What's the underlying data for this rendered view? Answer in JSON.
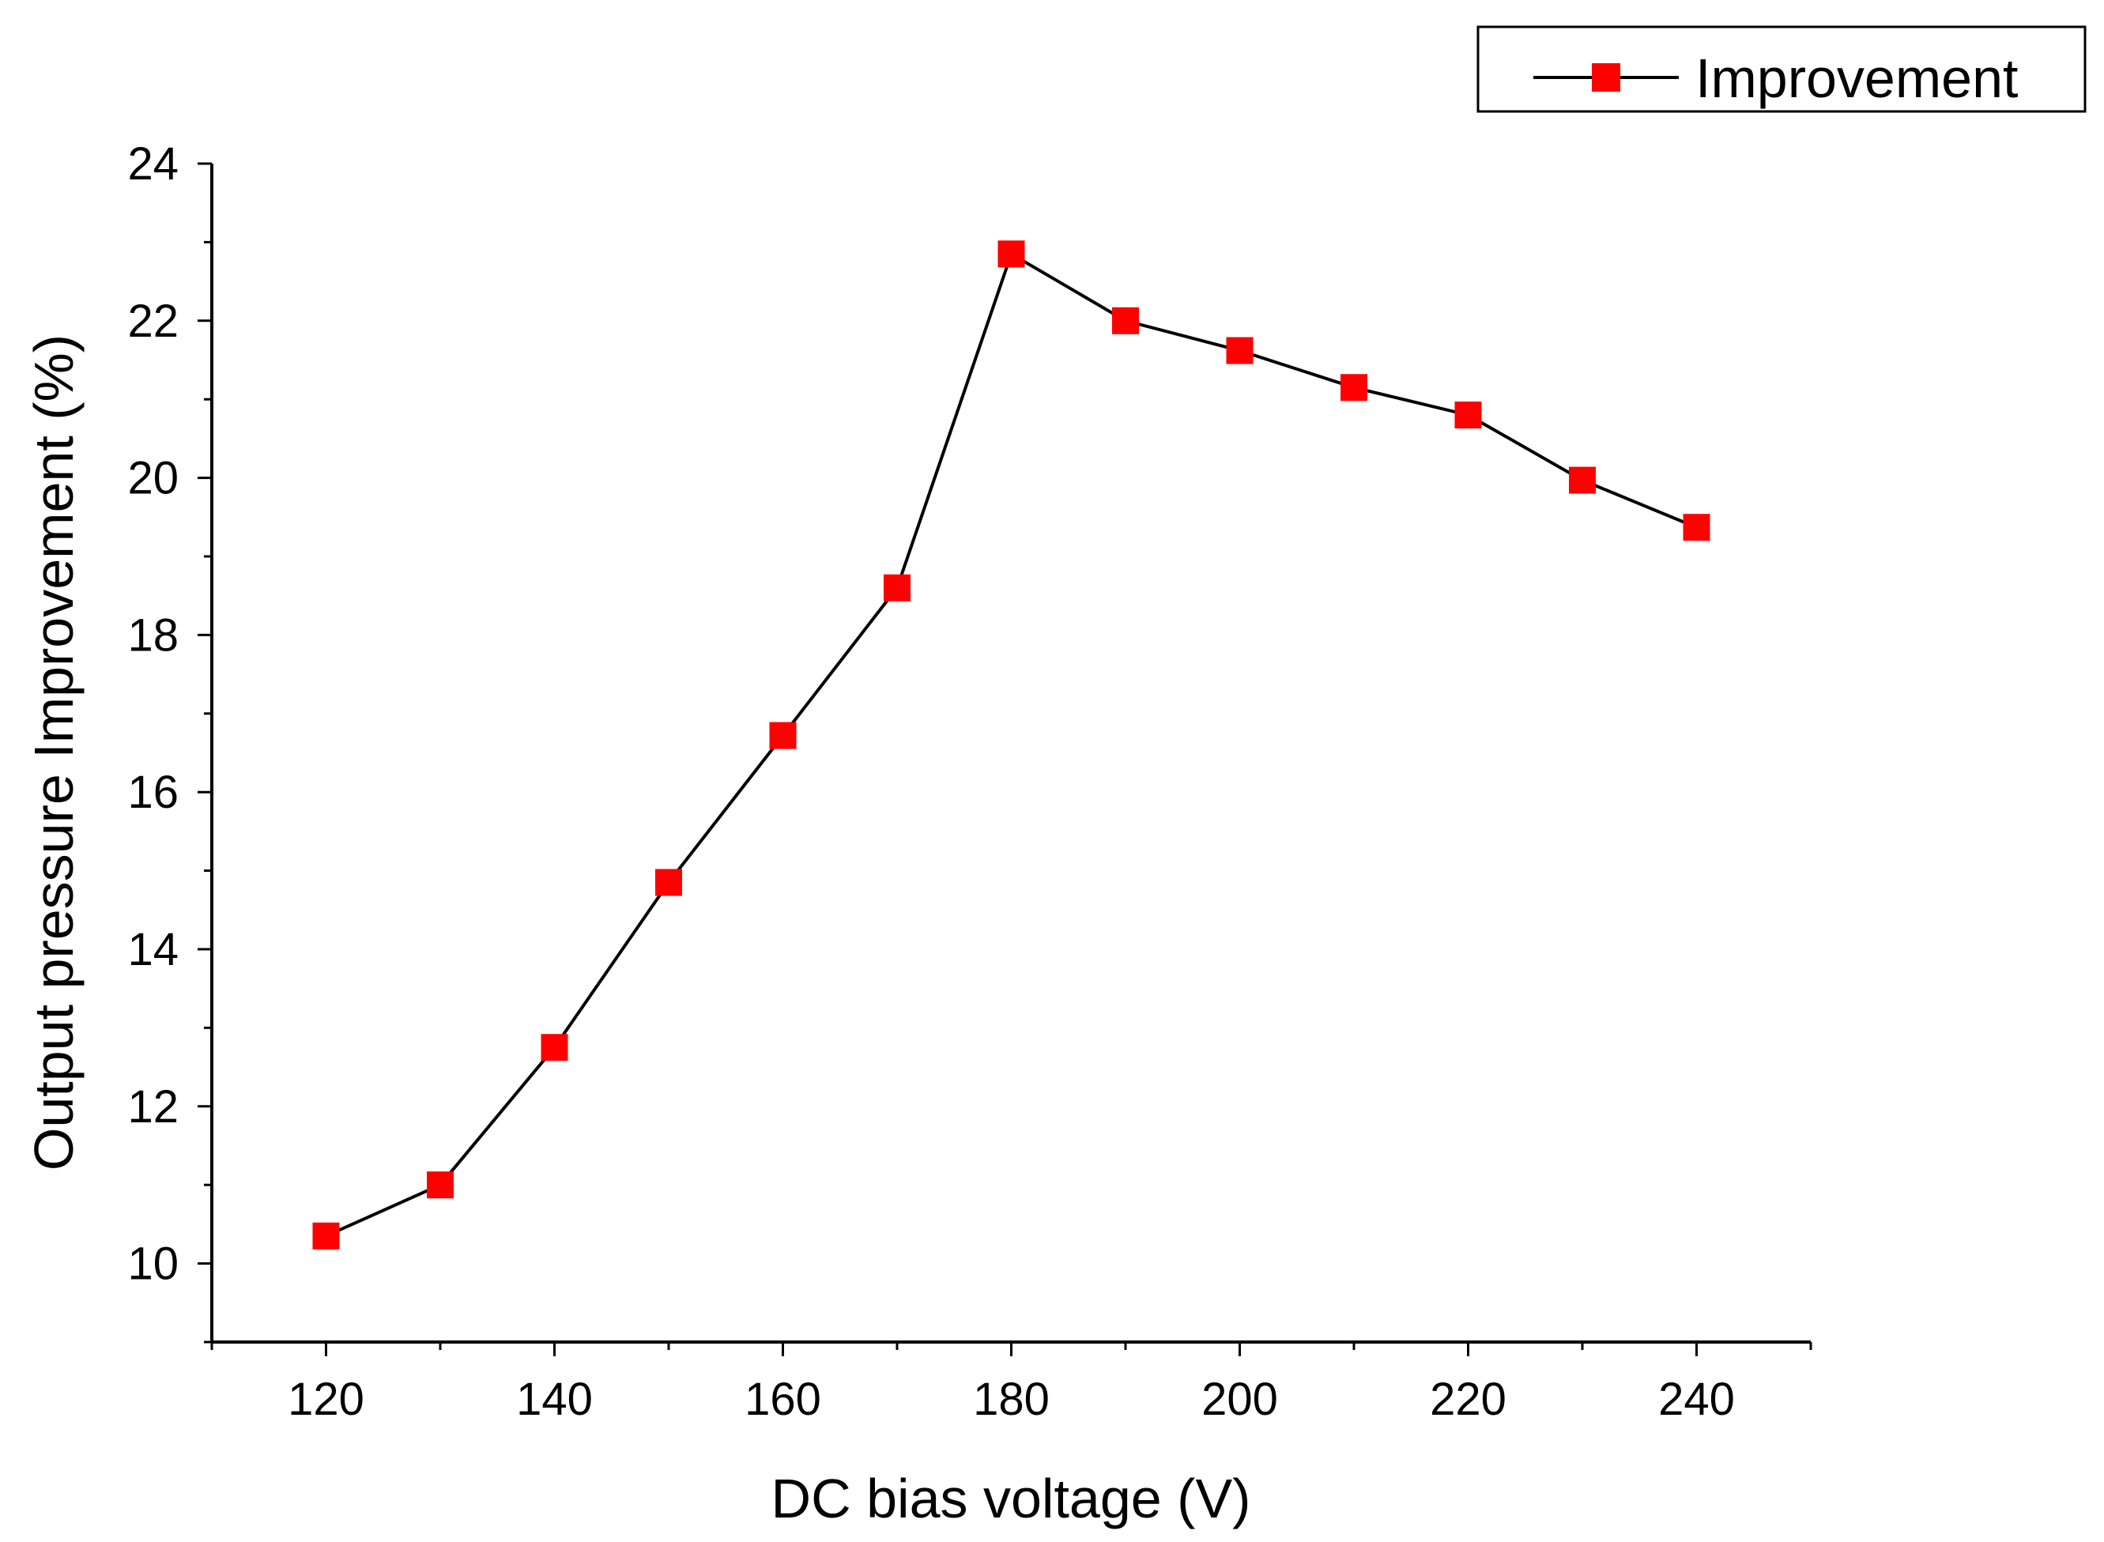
{
  "chart_data": {
    "type": "line",
    "title": "",
    "xlabel": "DC bias voltage (V)",
    "ylabel": "Output pressure Improvement (%)",
    "xlim": [
      110,
      250
    ],
    "ylim": [
      9,
      24
    ],
    "xticks": [
      120,
      140,
      160,
      180,
      200,
      220,
      240
    ],
    "yticks": [
      10,
      12,
      14,
      16,
      18,
      20,
      22,
      24
    ],
    "x_minor_step": 10,
    "y_minor_step": 1,
    "grid": false,
    "legend_position": "top-right",
    "series": [
      {
        "name": "Improvement",
        "color": "#000000",
        "marker": "square",
        "marker_color": "#ff0000",
        "x": [
          120,
          130,
          140,
          150,
          160,
          170,
          180,
          190,
          200,
          210,
          220,
          230,
          240
        ],
        "values": [
          10.35,
          11.0,
          12.75,
          14.85,
          16.72,
          18.6,
          22.85,
          22.0,
          21.62,
          21.15,
          20.8,
          19.97,
          19.37
        ]
      }
    ]
  }
}
